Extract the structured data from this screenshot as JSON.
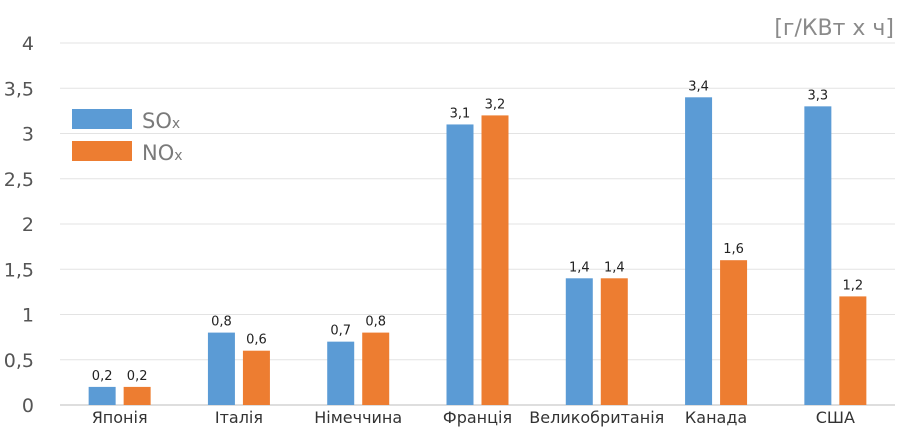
{
  "chart_data": {
    "type": "bar",
    "unit_label": "[г/КВт х ч]",
    "categories": [
      "Японія",
      "Італія",
      "Німеччина",
      "Франція",
      "Великобританія",
      "Канада",
      "США"
    ],
    "series": [
      {
        "name": "SOx",
        "name_main": "SO",
        "name_sub": "x",
        "color": "#5b9bd5",
        "values": [
          0.2,
          0.8,
          0.7,
          3.1,
          1.4,
          3.4,
          3.3
        ],
        "labels": [
          "0,2",
          "0,8",
          "0,7",
          "3,1",
          "1,4",
          "3,4",
          "3,3"
        ]
      },
      {
        "name": "NOx",
        "name_main": "NO",
        "name_sub": "x",
        "color": "#ed7d31",
        "values": [
          0.2,
          0.6,
          0.8,
          3.2,
          1.4,
          1.6,
          1.2
        ],
        "labels": [
          "0,2",
          "0,6",
          "0,8",
          "3,2",
          "1,4",
          "1,6",
          "1,2"
        ]
      }
    ],
    "yticks": [
      0,
      0.5,
      1,
      1.5,
      2,
      2.5,
      3,
      3.5,
      4
    ],
    "ytick_labels": [
      "0",
      "0,5",
      "1",
      "1,5",
      "2",
      "2,5",
      "3",
      "3,5",
      "4"
    ],
    "ylim": [
      0,
      4
    ],
    "grid": true,
    "legend_position": "top-left"
  }
}
